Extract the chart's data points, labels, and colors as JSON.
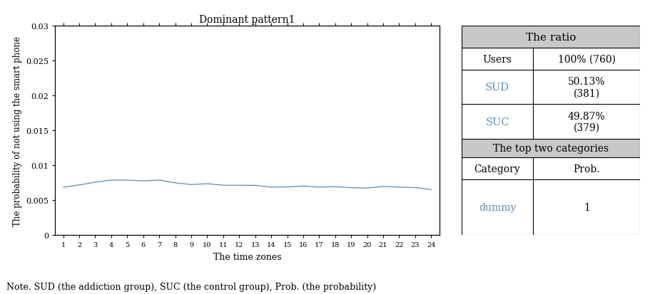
{
  "title": "Dominant pattern1",
  "xlabel": "The time zones",
  "ylabel": "The probability of not using the smart phone",
  "ylim": [
    0,
    0.03
  ],
  "yticks": [
    0,
    0.005,
    0.01,
    0.015,
    0.02,
    0.025,
    0.03
  ],
  "ytick_labels": [
    "0",
    "0.005",
    "0.01",
    "0.015",
    "0.02",
    "0.025",
    "0.03"
  ],
  "xticks": [
    1,
    2,
    3,
    4,
    5,
    6,
    7,
    8,
    9,
    10,
    11,
    12,
    13,
    14,
    15,
    16,
    17,
    18,
    19,
    20,
    21,
    22,
    23,
    24
  ],
  "line_color": "#5B8DB8",
  "line_values": [
    0.0068,
    0.0072,
    0.0075,
    0.0077,
    0.0079,
    0.0078,
    0.0077,
    0.0074,
    0.0073,
    0.0073,
    0.0072,
    0.0072,
    0.0071,
    0.0071,
    0.0071,
    0.0071,
    0.007,
    0.0069,
    0.0069,
    0.0069,
    0.0068,
    0.0069,
    0.0068,
    0.0067
  ],
  "table_header1": "The ratio",
  "table_header2": "The top two categories",
  "header_bg": "#C8C8C8",
  "note": "Note. SUD (the addiction group), SUC (the control group), Prob. (the probability)",
  "sud_suc_color": "#5B8DB8",
  "dummy_color": "#5B8DB8",
  "col_split": 0.4,
  "rows": [
    [
      1.0,
      0.895
    ],
    [
      0.895,
      0.79
    ],
    [
      0.79,
      0.625
    ],
    [
      0.625,
      0.46
    ],
    [
      0.46,
      0.37
    ],
    [
      0.37,
      0.265
    ],
    [
      0.265,
      0.0
    ]
  ]
}
